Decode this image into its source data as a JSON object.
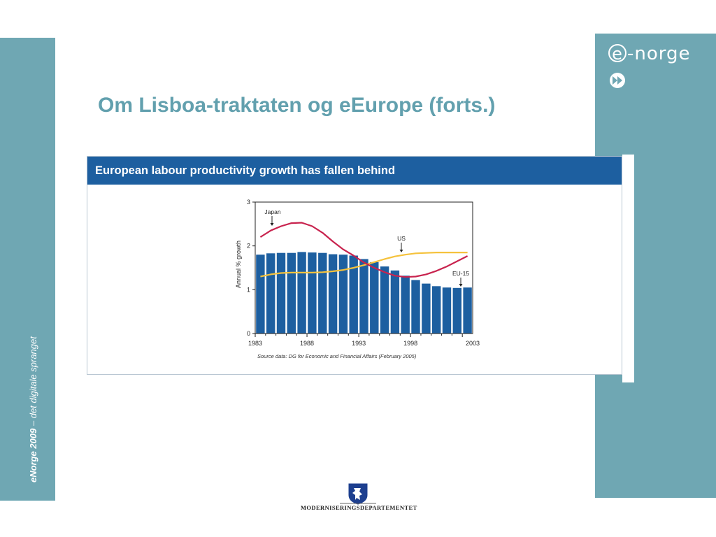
{
  "sidebar": {
    "label_bold": "eNorge 2009",
    "label_rest": " – det digitale spranget"
  },
  "logo": {
    "e": "e",
    "rest": "-norge",
    "icon": "fast-forward-icon"
  },
  "slide": {
    "title": "Om Lisboa-traktaten og eEurope (forts.)"
  },
  "chart_panel": {
    "header": "European labour productivity growth has fallen behind",
    "source": "Source data: DG for Economic and Financial Affairs (February 2005)"
  },
  "ministry": {
    "name": "MODERNISERINGSDEPARTEMENTET",
    "emblem": "norwegian-coat-of-arms-icon"
  },
  "colors": {
    "panel_header": "#1d5fa0",
    "bars": "#1d5fa0",
    "japan": "#c8234e",
    "us": "#f5c23c",
    "sidebar": "#6fa7b3",
    "title": "#62a0ae"
  },
  "chart_data": {
    "type": "bar",
    "title": "",
    "xlabel": "",
    "ylabel": "Annual % growth",
    "ylim": [
      0,
      3
    ],
    "yticks": [
      0,
      1,
      2,
      3
    ],
    "xticks": [
      1983,
      1988,
      1993,
      1998,
      2003
    ],
    "x": [
      1983,
      1984,
      1985,
      1986,
      1987,
      1988,
      1989,
      1990,
      1991,
      1992,
      1993,
      1994,
      1995,
      1996,
      1997,
      1998,
      1999,
      2000,
      2001,
      2002,
      2003
    ],
    "series": [
      {
        "name": "EU-15",
        "type": "bar",
        "values": [
          1.8,
          1.83,
          1.84,
          1.84,
          1.86,
          1.85,
          1.84,
          1.81,
          1.8,
          1.78,
          1.7,
          1.63,
          1.53,
          1.44,
          1.32,
          1.22,
          1.14,
          1.08,
          1.05,
          1.04,
          1.05
        ]
      },
      {
        "name": "Japan",
        "type": "line",
        "values": [
          2.2,
          2.35,
          2.45,
          2.52,
          2.53,
          2.45,
          2.3,
          2.1,
          1.92,
          1.78,
          1.62,
          1.5,
          1.4,
          1.32,
          1.29,
          1.3,
          1.35,
          1.43,
          1.53,
          1.65,
          1.77
        ]
      },
      {
        "name": "US",
        "type": "line",
        "values": [
          1.3,
          1.35,
          1.38,
          1.39,
          1.39,
          1.39,
          1.4,
          1.42,
          1.45,
          1.5,
          1.56,
          1.63,
          1.7,
          1.76,
          1.8,
          1.83,
          1.84,
          1.85,
          1.85,
          1.85,
          1.85
        ]
      }
    ],
    "annotations": [
      "Japan",
      "US",
      "EU-15"
    ],
    "grid": false,
    "legend": "none"
  }
}
